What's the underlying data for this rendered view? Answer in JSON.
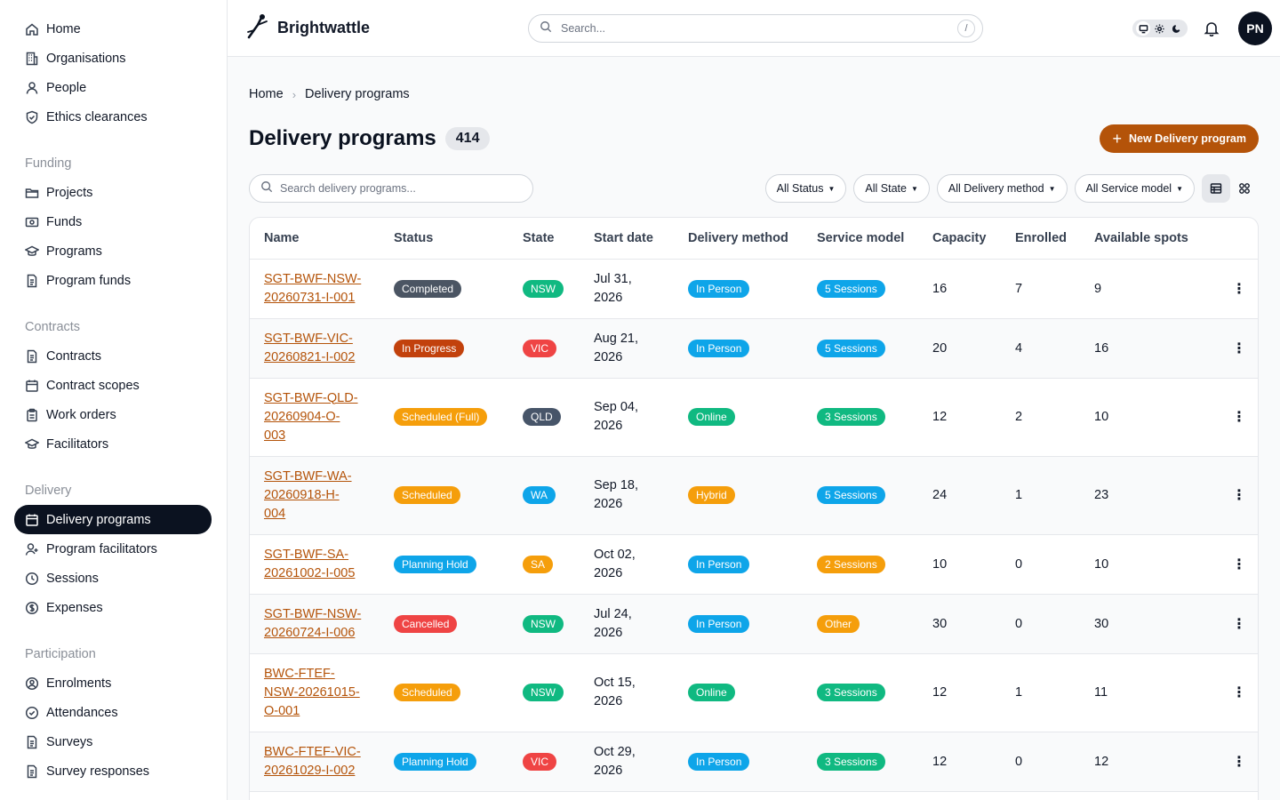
{
  "app": {
    "name": "Brightwattle"
  },
  "sidebar": {
    "top_items": [
      {
        "label": "Home",
        "icon": "home-icon"
      },
      {
        "label": "Organisations",
        "icon": "building-icon"
      },
      {
        "label": "People",
        "icon": "person-icon"
      },
      {
        "label": "Ethics clearances",
        "icon": "shield-check-icon"
      }
    ],
    "sections": [
      {
        "title": "Funding",
        "items": [
          {
            "label": "Projects",
            "icon": "folder-icon"
          },
          {
            "label": "Funds",
            "icon": "banknote-icon"
          },
          {
            "label": "Programs",
            "icon": "graduation-cap-icon"
          },
          {
            "label": "Program funds",
            "icon": "document-icon"
          }
        ]
      },
      {
        "title": "Contracts",
        "items": [
          {
            "label": "Contracts",
            "icon": "document-icon"
          },
          {
            "label": "Contract scopes",
            "icon": "calendar-icon"
          },
          {
            "label": "Work orders",
            "icon": "clipboard-icon"
          },
          {
            "label": "Facilitators",
            "icon": "graduation-cap-icon"
          }
        ]
      },
      {
        "title": "Delivery",
        "items": [
          {
            "label": "Delivery programs",
            "icon": "calendar-icon",
            "active": true
          },
          {
            "label": "Program facilitators",
            "icon": "user-plus-icon"
          },
          {
            "label": "Sessions",
            "icon": "clock-icon"
          },
          {
            "label": "Expenses",
            "icon": "dollar-circle-icon"
          }
        ]
      },
      {
        "title": "Participation",
        "items": [
          {
            "label": "Enrolments",
            "icon": "user-circle-icon"
          },
          {
            "label": "Attendances",
            "icon": "check-circle-icon"
          },
          {
            "label": "Surveys",
            "icon": "document-icon"
          },
          {
            "label": "Survey responses",
            "icon": "document-icon"
          }
        ]
      }
    ]
  },
  "header": {
    "search_placeholder": "Search...",
    "search_shortcut": "/",
    "avatar_initials": "PN"
  },
  "breadcrumb": {
    "home": "Home",
    "current": "Delivery programs"
  },
  "page": {
    "title": "Delivery programs",
    "count": "414",
    "new_button": "New Delivery program",
    "search_placeholder": "Search delivery programs...",
    "filters": [
      "All Status",
      "All State",
      "All Delivery method",
      "All Service model"
    ]
  },
  "colors": {
    "accent": "#b45309",
    "completed": "#4b5563",
    "in_progress": "#c2410c",
    "scheduled": "#f59e0b",
    "planning_hold": "#0ea5e9",
    "cancelled": "#ef4444",
    "green": "#10b981",
    "blue": "#0ea5e9",
    "red": "#ef4444",
    "slate": "#475569",
    "amber": "#f59e0b"
  },
  "table": {
    "columns": [
      "Name",
      "Status",
      "State",
      "Start date",
      "Delivery method",
      "Service model",
      "Capacity",
      "Enrolled",
      "Available spots"
    ],
    "rows": [
      {
        "name": [
          "SGT-BWF-NSW-",
          "20260731-I-001"
        ],
        "status": "Completed",
        "status_color": "#4b5563",
        "state": "NSW",
        "state_color": "#10b981",
        "date": [
          "Jul 31,",
          "2026"
        ],
        "method": "In Person",
        "method_color": "#0ea5e9",
        "service": "5 Sessions",
        "service_color": "#0ea5e9",
        "capacity": "16",
        "enrolled": "7",
        "available": "9"
      },
      {
        "name": [
          "SGT-BWF-VIC-",
          "20260821-I-002"
        ],
        "status": "In Progress",
        "status_color": "#c2410c",
        "state": "VIC",
        "state_color": "#ef4444",
        "date": [
          "Aug 21,",
          "2026"
        ],
        "method": "In Person",
        "method_color": "#0ea5e9",
        "service": "5 Sessions",
        "service_color": "#0ea5e9",
        "capacity": "20",
        "enrolled": "4",
        "available": "16"
      },
      {
        "name": [
          "SGT-BWF-QLD-",
          "20260904-O-",
          "003"
        ],
        "status": "Scheduled (Full)",
        "status_color": "#f59e0b",
        "state": "QLD",
        "state_color": "#475569",
        "date": [
          "Sep 04,",
          "2026"
        ],
        "method": "Online",
        "method_color": "#10b981",
        "service": "3 Sessions",
        "service_color": "#10b981",
        "capacity": "12",
        "enrolled": "2",
        "available": "10"
      },
      {
        "name": [
          "SGT-BWF-WA-",
          "20260918-H-",
          "004"
        ],
        "status": "Scheduled",
        "status_color": "#f59e0b",
        "state": "WA",
        "state_color": "#0ea5e9",
        "date": [
          "Sep 18,",
          "2026"
        ],
        "method": "Hybrid",
        "method_color": "#f59e0b",
        "service": "5 Sessions",
        "service_color": "#0ea5e9",
        "capacity": "24",
        "enrolled": "1",
        "available": "23"
      },
      {
        "name": [
          "SGT-BWF-SA-",
          "20261002-I-005"
        ],
        "status": "Planning Hold",
        "status_color": "#0ea5e9",
        "state": "SA",
        "state_color": "#f59e0b",
        "date": [
          "Oct 02,",
          "2026"
        ],
        "method": "In Person",
        "method_color": "#0ea5e9",
        "service": "2 Sessions",
        "service_color": "#f59e0b",
        "capacity": "10",
        "enrolled": "0",
        "available": "10"
      },
      {
        "name": [
          "SGT-BWF-NSW-",
          "20260724-I-006"
        ],
        "status": "Cancelled",
        "status_color": "#ef4444",
        "state": "NSW",
        "state_color": "#10b981",
        "date": [
          "Jul 24,",
          "2026"
        ],
        "method": "In Person",
        "method_color": "#0ea5e9",
        "service": "Other",
        "service_color": "#f59e0b",
        "capacity": "30",
        "enrolled": "0",
        "available": "30"
      },
      {
        "name": [
          "BWC-FTEF-",
          "NSW-20261015-",
          "O-001"
        ],
        "status": "Scheduled",
        "status_color": "#f59e0b",
        "state": "NSW",
        "state_color": "#10b981",
        "date": [
          "Oct 15,",
          "2026"
        ],
        "method": "Online",
        "method_color": "#10b981",
        "service": "3 Sessions",
        "service_color": "#10b981",
        "capacity": "12",
        "enrolled": "1",
        "available": "11"
      },
      {
        "name": [
          "BWC-FTEF-VIC-",
          "20261029-I-002"
        ],
        "status": "Planning Hold",
        "status_color": "#0ea5e9",
        "state": "VIC",
        "state_color": "#ef4444",
        "date": [
          "Oct 29,",
          "2026"
        ],
        "method": "In Person",
        "method_color": "#0ea5e9",
        "service": "3 Sessions",
        "service_color": "#10b981",
        "capacity": "12",
        "enrolled": "0",
        "available": "12"
      }
    ]
  }
}
